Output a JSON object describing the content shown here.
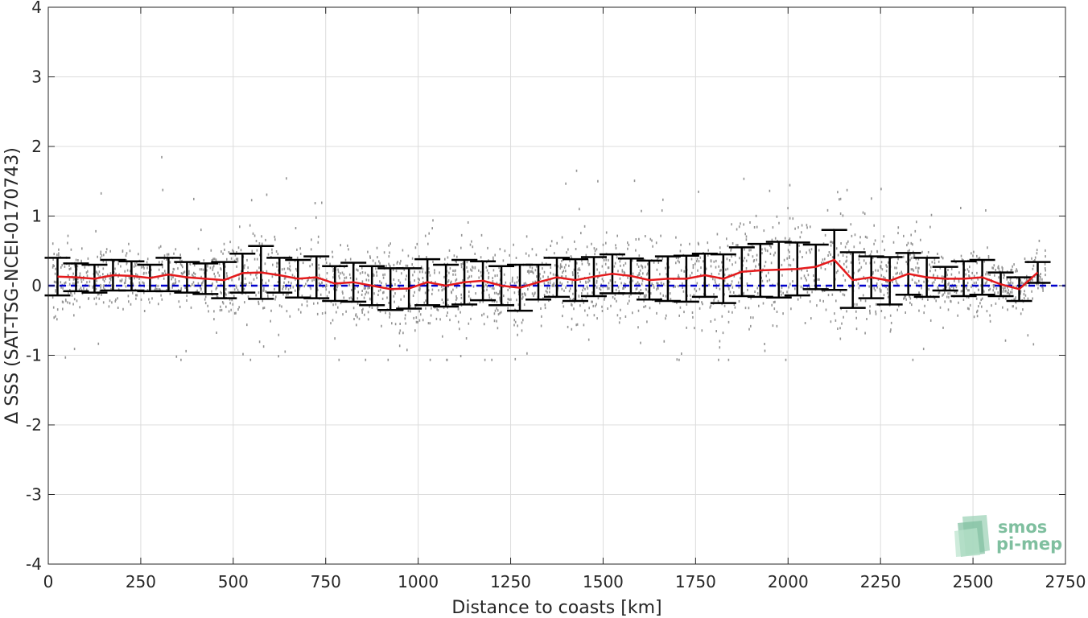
{
  "chart_data": {
    "type": "scatter",
    "xlabel": "Distance to coasts [km]",
    "ylabel": "Δ SSS (SAT-TSG-NCEI-0170743)",
    "xlim": [
      0,
      2750
    ],
    "ylim": [
      -4,
      4
    ],
    "xticks": [
      0,
      250,
      500,
      750,
      1000,
      1250,
      1500,
      1750,
      2000,
      2250,
      2500,
      2750
    ],
    "yticks": [
      -4,
      -3,
      -2,
      -1,
      0,
      1,
      2,
      3,
      4
    ],
    "grid": true,
    "zero_line": {
      "y": 0,
      "color": "#0000cc",
      "style": "dashed"
    },
    "series": [
      {
        "kind": "binned_mean_with_std",
        "color": "#e41a1c",
        "errorbar_color": "#000000",
        "x": [
          25,
          75,
          125,
          175,
          225,
          275,
          325,
          375,
          425,
          475,
          525,
          575,
          625,
          675,
          725,
          775,
          825,
          875,
          925,
          975,
          1025,
          1075,
          1125,
          1175,
          1225,
          1275,
          1325,
          1375,
          1425,
          1475,
          1525,
          1575,
          1625,
          1675,
          1725,
          1775,
          1825,
          1875,
          1925,
          1975,
          2025,
          2075,
          2125,
          2175,
          2225,
          2275,
          2325,
          2375,
          2425,
          2475,
          2525,
          2575,
          2625,
          2675
        ],
        "mean": [
          0.13,
          0.12,
          0.1,
          0.15,
          0.14,
          0.11,
          0.16,
          0.12,
          0.1,
          0.08,
          0.18,
          0.19,
          0.15,
          0.1,
          0.12,
          0.03,
          0.05,
          0.0,
          -0.05,
          -0.04,
          0.05,
          0.0,
          0.05,
          0.07,
          0.0,
          -0.03,
          0.05,
          0.12,
          0.08,
          0.13,
          0.17,
          0.14,
          0.08,
          0.1,
          0.1,
          0.15,
          0.1,
          0.2,
          0.22,
          0.23,
          0.24,
          0.27,
          0.37,
          0.08,
          0.12,
          0.07,
          0.17,
          0.12,
          0.1,
          0.1,
          0.12,
          0.02,
          -0.05,
          0.19
        ],
        "std": [
          0.27,
          0.2,
          0.2,
          0.22,
          0.21,
          0.19,
          0.24,
          0.22,
          0.22,
          0.26,
          0.28,
          0.38,
          0.25,
          0.27,
          0.3,
          0.25,
          0.28,
          0.28,
          0.3,
          0.29,
          0.33,
          0.3,
          0.32,
          0.28,
          0.28,
          0.33,
          0.25,
          0.28,
          0.3,
          0.28,
          0.28,
          0.25,
          0.28,
          0.32,
          0.33,
          0.31,
          0.35,
          0.35,
          0.38,
          0.4,
          0.38,
          0.32,
          0.43,
          0.4,
          0.3,
          0.34,
          0.3,
          0.28,
          0.17,
          0.25,
          0.25,
          0.17,
          0.17,
          0.15
        ]
      },
      {
        "kind": "collocations",
        "color": "#808080"
      }
    ]
  },
  "logo": {
    "line1": "smos",
    "line2": "pi-mep",
    "color": "#7fbf9f"
  }
}
